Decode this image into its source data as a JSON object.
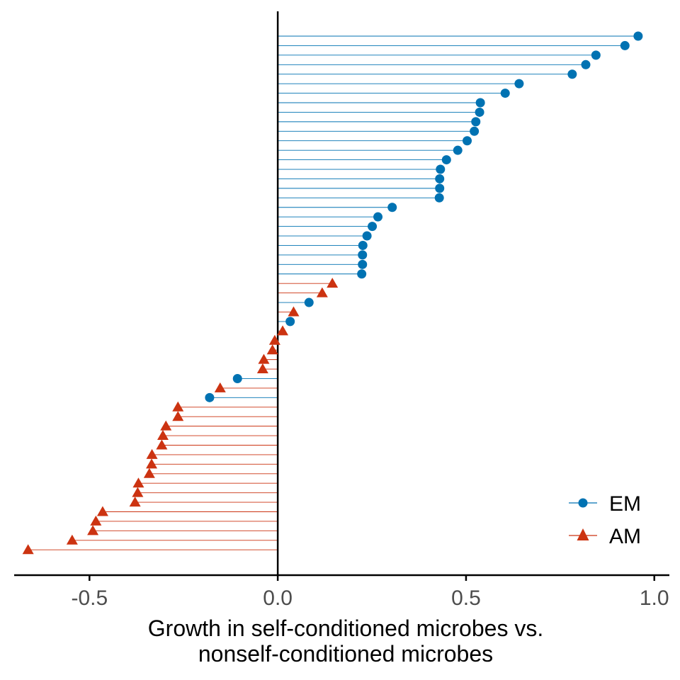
{
  "chart_data": {
    "type": "lollipop",
    "orientation": "horizontal",
    "xlabel": [
      "Growth in self-conditioned microbes vs.",
      "nonself-conditioned microbes"
    ],
    "ylabel": "",
    "xlim": [
      -0.7,
      1.04
    ],
    "x_ticks": [
      -0.5,
      0.0,
      0.5,
      1.0
    ],
    "x_tick_labels": [
      "-0.5",
      "0.0",
      "0.5",
      "1.0"
    ],
    "baseline": 0,
    "grid": false,
    "legend": {
      "position": "bottom-right"
    },
    "series": [
      {
        "name": "EM",
        "color": "#0072B2",
        "marker": "circle"
      },
      {
        "name": "AM",
        "color": "#CC3311",
        "marker": "triangle"
      }
    ],
    "points": [
      {
        "series": "EM",
        "value": 0.957
      },
      {
        "series": "EM",
        "value": 0.922
      },
      {
        "series": "EM",
        "value": 0.845
      },
      {
        "series": "EM",
        "value": 0.818
      },
      {
        "series": "EM",
        "value": 0.782
      },
      {
        "series": "EM",
        "value": 0.641
      },
      {
        "series": "EM",
        "value": 0.604
      },
      {
        "series": "EM",
        "value": 0.538
      },
      {
        "series": "EM",
        "value": 0.536
      },
      {
        "series": "EM",
        "value": 0.526
      },
      {
        "series": "EM",
        "value": 0.522
      },
      {
        "series": "EM",
        "value": 0.503
      },
      {
        "series": "EM",
        "value": 0.478
      },
      {
        "series": "EM",
        "value": 0.448
      },
      {
        "series": "EM",
        "value": 0.432
      },
      {
        "series": "EM",
        "value": 0.43
      },
      {
        "series": "EM",
        "value": 0.43
      },
      {
        "series": "EM",
        "value": 0.429
      },
      {
        "series": "EM",
        "value": 0.304
      },
      {
        "series": "EM",
        "value": 0.266
      },
      {
        "series": "EM",
        "value": 0.251
      },
      {
        "series": "EM",
        "value": 0.237
      },
      {
        "series": "EM",
        "value": 0.226
      },
      {
        "series": "EM",
        "value": 0.225
      },
      {
        "series": "EM",
        "value": 0.225
      },
      {
        "series": "EM",
        "value": 0.223
      },
      {
        "series": "AM",
        "value": 0.145
      },
      {
        "series": "AM",
        "value": 0.118
      },
      {
        "series": "EM",
        "value": 0.083
      },
      {
        "series": "AM",
        "value": 0.042
      },
      {
        "series": "EM",
        "value": 0.033
      },
      {
        "series": "AM",
        "value": 0.013
      },
      {
        "series": "AM",
        "value": -0.008
      },
      {
        "series": "AM",
        "value": -0.014
      },
      {
        "series": "AM",
        "value": -0.037
      },
      {
        "series": "AM",
        "value": -0.04
      },
      {
        "series": "EM",
        "value": -0.107
      },
      {
        "series": "AM",
        "value": -0.153
      },
      {
        "series": "EM",
        "value": -0.181
      },
      {
        "series": "AM",
        "value": -0.265
      },
      {
        "series": "AM",
        "value": -0.265
      },
      {
        "series": "AM",
        "value": -0.297
      },
      {
        "series": "AM",
        "value": -0.305
      },
      {
        "series": "AM",
        "value": -0.308
      },
      {
        "series": "AM",
        "value": -0.334
      },
      {
        "series": "AM",
        "value": -0.335
      },
      {
        "series": "AM",
        "value": -0.341
      },
      {
        "series": "AM",
        "value": -0.37
      },
      {
        "series": "AM",
        "value": -0.372
      },
      {
        "series": "AM",
        "value": -0.379
      },
      {
        "series": "AM",
        "value": -0.465
      },
      {
        "series": "AM",
        "value": -0.483
      },
      {
        "series": "AM",
        "value": -0.491
      },
      {
        "series": "AM",
        "value": -0.546
      },
      {
        "series": "AM",
        "value": -0.663
      }
    ]
  }
}
